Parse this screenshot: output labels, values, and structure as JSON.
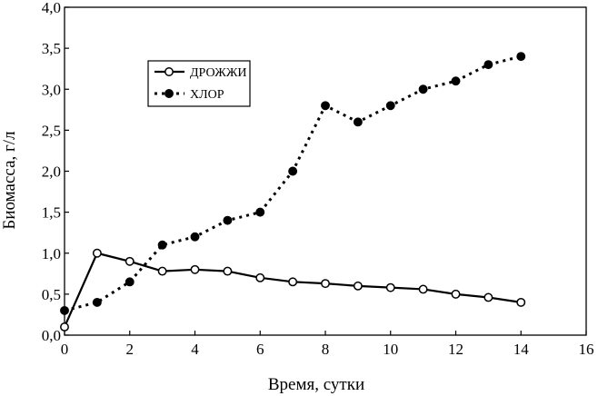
{
  "chart_data": {
    "type": "line",
    "xlabel": "Время, сутки",
    "ylabel": "Биомасса, г/л",
    "xlim": [
      0,
      16
    ],
    "ylim": [
      0,
      4
    ],
    "x_ticks": [
      "0",
      "2",
      "4",
      "6",
      "8",
      "10",
      "12",
      "14",
      "16"
    ],
    "y_ticks": [
      "0,0",
      "0,5",
      "1,0",
      "1,5",
      "2,0",
      "2,5",
      "3,0",
      "3,5",
      "4,0"
    ],
    "grid": false,
    "legend_position": "top-left",
    "series": [
      {
        "name": "ДРОЖЖИ",
        "style": "solid",
        "marker": "open-circle",
        "color": "#000000",
        "x": [
          0,
          1,
          2,
          3,
          4,
          5,
          6,
          7,
          8,
          9,
          10,
          11,
          12,
          13,
          14
        ],
        "y": [
          0.1,
          1.0,
          0.9,
          0.78,
          0.8,
          0.78,
          0.7,
          0.65,
          0.63,
          0.6,
          0.58,
          0.56,
          0.5,
          0.46,
          0.4
        ]
      },
      {
        "name": "ХЛОР",
        "style": "dotted",
        "marker": "filled-circle",
        "color": "#000000",
        "x": [
          0,
          1,
          2,
          3,
          4,
          5,
          6,
          7,
          8,
          9,
          10,
          11,
          12,
          13,
          14
        ],
        "y": [
          0.3,
          0.4,
          0.65,
          1.1,
          1.2,
          1.4,
          1.5,
          2.0,
          2.8,
          2.6,
          2.8,
          3.0,
          3.1,
          3.3,
          3.4
        ]
      }
    ]
  }
}
